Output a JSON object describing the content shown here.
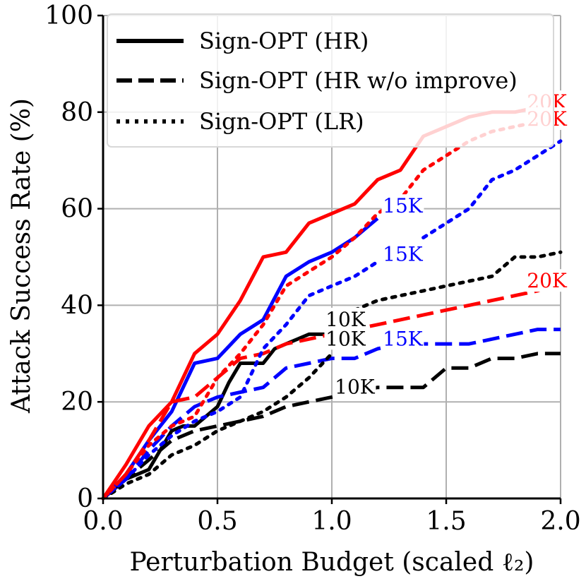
{
  "chart_data": {
    "type": "line",
    "title": "",
    "xlabel": "Perturbation Budget (scaled ℓ₂)",
    "ylabel": "Attack Success Rate (%)",
    "xlim": [
      0.0,
      2.0
    ],
    "ylim": [
      0,
      100
    ],
    "xticks": [
      0.0,
      0.5,
      1.0,
      1.5,
      2.0
    ],
    "xtick_labels": [
      "0.0",
      "0.5",
      "1.0",
      "1.5",
      "2.0"
    ],
    "yticks": [
      0,
      20,
      40,
      60,
      80,
      100
    ],
    "ytick_labels": [
      "0",
      "20",
      "40",
      "60",
      "80",
      "100"
    ],
    "grid": true,
    "legend": {
      "position": "top-left",
      "entries": [
        {
          "label": "Sign-OPT (HR)",
          "style": "solid"
        },
        {
          "label": "Sign-OPT (HR w/o improve)",
          "style": "dashed"
        },
        {
          "label": "Sign-OPT (LR)",
          "style": "dotted"
        }
      ]
    },
    "series": [
      {
        "name": "HR 10K",
        "queries": "10K",
        "method": "Sign-OPT (HR)",
        "style": "solid",
        "color": "#000000",
        "x": [
          0.0,
          0.05,
          0.1,
          0.15,
          0.2,
          0.25,
          0.3,
          0.35,
          0.4,
          0.45,
          0.5,
          0.55,
          0.6,
          0.65,
          0.7,
          0.75,
          0.8,
          0.85,
          0.9,
          0.95,
          1.0
        ],
        "y": [
          0,
          2,
          4,
          5,
          6,
          10,
          14,
          15,
          15,
          17,
          19,
          24,
          28,
          28,
          28,
          31,
          32,
          33,
          34,
          34,
          34
        ],
        "label_text": "10K",
        "label_at": [
          1.06,
          37
        ]
      },
      {
        "name": "HR 15K",
        "queries": "15K",
        "method": "Sign-OPT (HR)",
        "style": "solid",
        "color": "#0000ff",
        "x": [
          0.0,
          0.1,
          0.2,
          0.3,
          0.4,
          0.5,
          0.6,
          0.7,
          0.8,
          0.9,
          1.0,
          1.1,
          1.2
        ],
        "y": [
          0,
          5,
          12,
          18,
          28,
          29,
          34,
          37,
          46,
          49,
          51,
          54,
          58
        ],
        "label_text": "15K",
        "label_at": [
          1.31,
          60.5
        ]
      },
      {
        "name": "HR 20K",
        "queries": "20K",
        "method": "Sign-OPT (HR)",
        "style": "solid",
        "color": "#ff0000",
        "x": [
          0.0,
          0.1,
          0.2,
          0.3,
          0.4,
          0.5,
          0.6,
          0.7,
          0.8,
          0.9,
          1.0,
          1.1,
          1.2,
          1.3,
          1.4,
          1.5,
          1.6,
          1.7,
          1.8,
          1.9,
          2.0
        ],
        "y": [
          0,
          7,
          15,
          20,
          30,
          34,
          41,
          50,
          51,
          57,
          59,
          61,
          66,
          68,
          75,
          77,
          79,
          80,
          80,
          81,
          81
        ],
        "label_text": "20K",
        "label_at": [
          1.94,
          82
        ]
      },
      {
        "name": "HR w/o improve 10K",
        "queries": "10K",
        "method": "Sign-OPT (HR w/o improve)",
        "style": "dashed",
        "color": "#000000",
        "x": [
          0.0,
          0.1,
          0.2,
          0.3,
          0.4,
          0.5,
          0.6,
          0.7,
          0.8,
          0.9,
          1.0,
          1.1,
          1.2,
          1.3,
          1.4,
          1.5,
          1.6,
          1.7,
          1.8,
          1.9,
          2.0
        ],
        "y": [
          0,
          4,
          8,
          12,
          14,
          15,
          16,
          17,
          19,
          20,
          21,
          22,
          23,
          23,
          23,
          27,
          27,
          29,
          29,
          30,
          30
        ],
        "label_text": "10K",
        "label_at": [
          1.1,
          23
        ]
      },
      {
        "name": "HR w/o improve 15K",
        "queries": "15K",
        "method": "Sign-OPT (HR w/o improve)",
        "style": "dashed",
        "color": "#0000ff",
        "x": [
          0.0,
          0.1,
          0.2,
          0.3,
          0.4,
          0.5,
          0.6,
          0.7,
          0.8,
          0.9,
          1.0,
          1.1,
          1.2,
          1.3,
          1.4,
          1.5,
          1.6,
          1.7,
          1.8,
          1.9,
          2.0
        ],
        "y": [
          0,
          4,
          10,
          15,
          19,
          21,
          22,
          23,
          27,
          28,
          29,
          29,
          31,
          32,
          32,
          32,
          32,
          33,
          34,
          35,
          35
        ],
        "label_text": "15K",
        "label_at": [
          1.31,
          33
        ]
      },
      {
        "name": "HR w/o improve 20K",
        "queries": "20K",
        "method": "Sign-OPT (HR w/o improve)",
        "style": "dashed",
        "color": "#ff0000",
        "x": [
          0.0,
          0.1,
          0.2,
          0.3,
          0.4,
          0.5,
          0.6,
          0.7,
          0.8,
          0.9,
          1.0,
          1.1,
          1.2,
          1.3,
          1.4,
          1.5,
          1.6,
          1.7,
          1.8,
          1.9,
          2.0
        ],
        "y": [
          0,
          5,
          12,
          20,
          21,
          25,
          29,
          30,
          32,
          33,
          34,
          35,
          36,
          37,
          38,
          39,
          40,
          41,
          42,
          43,
          45
        ],
        "label_text": "20K",
        "label_at": [
          1.94,
          45
        ]
      },
      {
        "name": "LR 10K",
        "queries": "10K",
        "method": "Sign-OPT (LR)",
        "style": "dotted",
        "color": "#000000",
        "x": [
          0.0,
          0.1,
          0.2,
          0.3,
          0.4,
          0.5,
          0.6,
          0.7,
          0.8,
          0.9,
          1.0
        ],
        "y": [
          0,
          3,
          5,
          9,
          11,
          14,
          16,
          18,
          21,
          25,
          30
        ],
        "label_text": "10K",
        "label_at": [
          1.06,
          33
        ]
      },
      {
        "name": "LR 10K continued",
        "queries": "10K",
        "method": "Sign-OPT (LR)",
        "style": "dotted",
        "color": "#000000",
        "x": [
          1.1,
          1.2,
          1.3,
          1.4,
          1.5,
          1.6,
          1.7,
          1.8,
          1.9,
          2.0
        ],
        "y": [
          39,
          41,
          42,
          43,
          44,
          45,
          46,
          50,
          50,
          51
        ],
        "label_text": "",
        "label_at": null
      },
      {
        "name": "LR 15K",
        "queries": "15K",
        "method": "Sign-OPT (LR)",
        "style": "dotted",
        "color": "#0000ff",
        "x": [
          0.0,
          0.1,
          0.2,
          0.3,
          0.4,
          0.5,
          0.6,
          0.7,
          0.8,
          0.9,
          1.0,
          1.1,
          1.2
        ],
        "y": [
          0,
          4,
          9,
          13,
          16,
          18,
          21,
          31,
          36,
          42,
          44,
          46,
          49
        ],
        "label_text": "15K",
        "label_at": [
          1.31,
          50.5
        ]
      },
      {
        "name": "LR 15K continued",
        "queries": "15K",
        "method": "Sign-OPT (LR)",
        "style": "dotted",
        "color": "#0000ff",
        "x": [
          1.4,
          1.5,
          1.6,
          1.7,
          1.8,
          1.9,
          2.0
        ],
        "y": [
          54,
          57,
          60,
          66,
          68,
          71,
          74
        ],
        "label_text": "",
        "label_at": null
      },
      {
        "name": "LR 20K",
        "queries": "20K",
        "method": "Sign-OPT (LR)",
        "style": "dotted",
        "color": "#ff0000",
        "x": [
          0.0,
          0.1,
          0.2,
          0.3,
          0.4,
          0.5,
          0.6,
          0.7,
          0.8,
          0.9,
          1.0,
          1.1,
          1.2,
          1.3,
          1.4,
          1.5,
          1.6,
          1.7,
          1.8,
          1.9,
          2.0
        ],
        "y": [
          0,
          5,
          11,
          15,
          17,
          25,
          30,
          36,
          44,
          47,
          50,
          54,
          59,
          62,
          68,
          71,
          74,
          76,
          77,
          78,
          78
        ],
        "label_text": "20K",
        "label_at": [
          1.94,
          78.5
        ]
      }
    ]
  }
}
